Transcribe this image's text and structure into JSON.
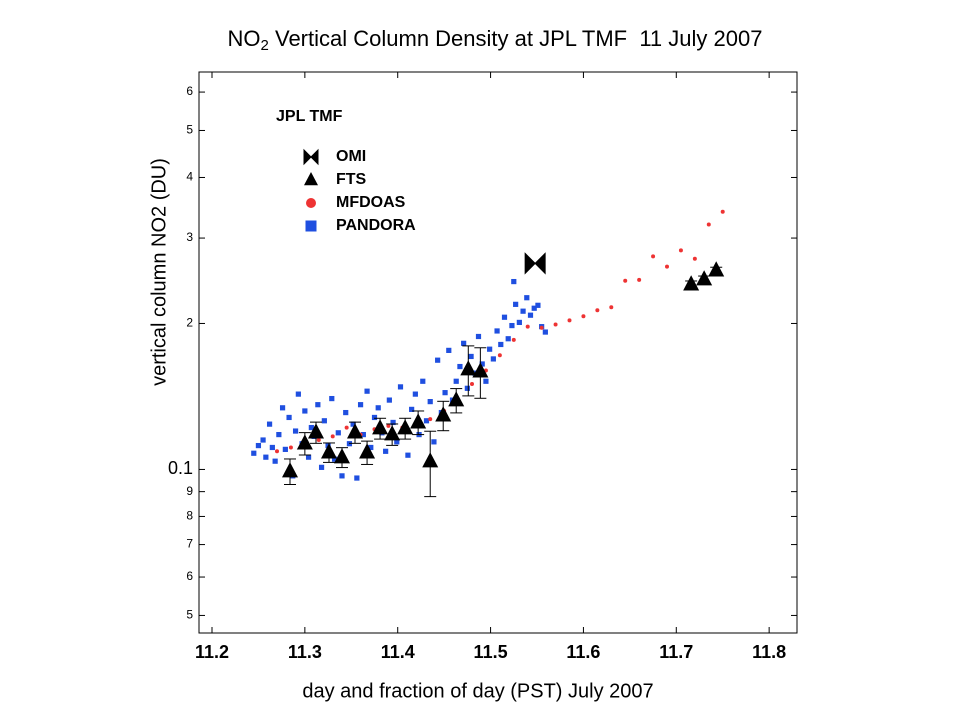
{
  "chart_data": {
    "type": "scatter",
    "title_prefix": "NO",
    "title_subscript": "2",
    "title_rest": " Vertical Column Density at JPL TMF  11 July 2007",
    "xlabel": "day and fraction of day (PST) July 2007",
    "ylabel": "vertical column NO2 (DU)",
    "legend_title": "JPL TMF",
    "yscale": "log",
    "xlim": [
      11.186,
      11.83
    ],
    "ylim": [
      0.046,
      0.66
    ],
    "xticks": [
      11.2,
      11.3,
      11.4,
      11.5,
      11.6,
      11.7,
      11.8
    ],
    "yticks": [
      {
        "value": 0.6,
        "label": "6"
      },
      {
        "value": 0.5,
        "label": "5"
      },
      {
        "value": 0.4,
        "label": "4"
      },
      {
        "value": 0.3,
        "label": "3"
      },
      {
        "value": 0.2,
        "label": "2"
      },
      0.1,
      {
        "value": 0.09,
        "label": "9"
      },
      {
        "value": 0.08,
        "label": "8"
      },
      {
        "value": 0.07,
        "label": "7"
      },
      {
        "value": 0.06,
        "label": "6"
      },
      {
        "value": 0.05,
        "label": "5"
      }
    ],
    "series": [
      {
        "name": "OMI",
        "marker": "bowtie",
        "color": "#000000",
        "x": [
          11.548
        ],
        "values": [
          0.266
        ]
      },
      {
        "name": "FTS",
        "marker": "triangle",
        "color": "#000000",
        "x": [
          11.284,
          11.3,
          11.312,
          11.326,
          11.34,
          11.354,
          11.367,
          11.381,
          11.394,
          11.408,
          11.422,
          11.435,
          11.449,
          11.463,
          11.476,
          11.489,
          11.716,
          11.73,
          11.743
        ],
        "values": [
          0.0991,
          0.1131,
          0.1192,
          0.1084,
          0.1059,
          0.1192,
          0.1084,
          0.1215,
          0.1181,
          0.1215,
          0.125,
          0.1039,
          0.1292,
          0.1388,
          0.1608,
          0.1592,
          0.2407,
          0.2465,
          0.2572
        ],
        "errors": [
          0.006,
          0.006,
          0.006,
          0.005,
          0.005,
          0.006,
          0.006,
          0.006,
          0.006,
          0.006,
          0.007,
          0.016,
          0.009,
          0.008,
          0.019,
          0.019,
          0.004,
          0.004,
          0.004
        ]
      },
      {
        "name": "MFDOAS",
        "marker": "dot",
        "color": "#ee3333",
        "x": [
          11.27,
          11.285,
          11.3,
          11.315,
          11.33,
          11.345,
          11.36,
          11.375,
          11.39,
          11.405,
          11.42,
          11.435,
          11.45,
          11.465,
          11.48,
          11.495,
          11.51,
          11.525,
          11.54,
          11.555,
          11.57,
          11.585,
          11.6,
          11.615,
          11.63,
          11.645,
          11.66,
          11.675,
          11.69,
          11.705,
          11.72,
          11.735,
          11.75
        ],
        "values": [
          0.109,
          0.111,
          0.113,
          0.115,
          0.117,
          0.122,
          0.118,
          0.121,
          0.123,
          0.122,
          0.125,
          0.127,
          0.132,
          0.138,
          0.15,
          0.16,
          0.172,
          0.185,
          0.197,
          0.196,
          0.199,
          0.203,
          0.207,
          0.213,
          0.216,
          0.245,
          0.246,
          0.275,
          0.262,
          0.283,
          0.272,
          0.32,
          0.34
        ]
      },
      {
        "name": "PANDORA",
        "marker": "square",
        "color": "#1f4fe0",
        "x": [
          11.245,
          11.25,
          11.255,
          11.258,
          11.262,
          11.265,
          11.268,
          11.272,
          11.276,
          11.279,
          11.283,
          11.287,
          11.29,
          11.293,
          11.297,
          11.3,
          11.304,
          11.307,
          11.31,
          11.314,
          11.318,
          11.321,
          11.325,
          11.329,
          11.332,
          11.336,
          11.34,
          11.344,
          11.348,
          11.352,
          11.356,
          11.36,
          11.363,
          11.367,
          11.371,
          11.375,
          11.379,
          11.383,
          11.387,
          11.391,
          11.395,
          11.399,
          11.403,
          11.407,
          11.411,
          11.415,
          11.419,
          11.423,
          11.427,
          11.431,
          11.435,
          11.439,
          11.443,
          11.447,
          11.451,
          11.455,
          11.459,
          11.463,
          11.467,
          11.471,
          11.475,
          11.479,
          11.483,
          11.487,
          11.491,
          11.495,
          11.499,
          11.503,
          11.507,
          11.511,
          11.515,
          11.519,
          11.523,
          11.525,
          11.527,
          11.531,
          11.535,
          11.539,
          11.543,
          11.547,
          11.551,
          11.555,
          11.559
        ],
        "values": [
          0.108,
          0.112,
          0.115,
          0.106,
          0.124,
          0.111,
          0.104,
          0.118,
          0.134,
          0.11,
          0.128,
          0.097,
          0.12,
          0.143,
          0.113,
          0.132,
          0.106,
          0.122,
          0.117,
          0.136,
          0.101,
          0.126,
          0.112,
          0.14,
          0.105,
          0.119,
          0.097,
          0.131,
          0.113,
          0.124,
          0.096,
          0.136,
          0.118,
          0.145,
          0.111,
          0.128,
          0.134,
          0.119,
          0.109,
          0.139,
          0.125,
          0.114,
          0.148,
          0.121,
          0.107,
          0.133,
          0.143,
          0.118,
          0.152,
          0.126,
          0.138,
          0.114,
          0.168,
          0.131,
          0.144,
          0.176,
          0.139,
          0.152,
          0.163,
          0.182,
          0.147,
          0.171,
          0.158,
          0.188,
          0.165,
          0.152,
          0.177,
          0.169,
          0.193,
          0.181,
          0.206,
          0.186,
          0.198,
          0.244,
          0.219,
          0.201,
          0.212,
          0.226,
          0.208,
          0.215,
          0.218,
          0.197,
          0.192
        ]
      }
    ]
  }
}
